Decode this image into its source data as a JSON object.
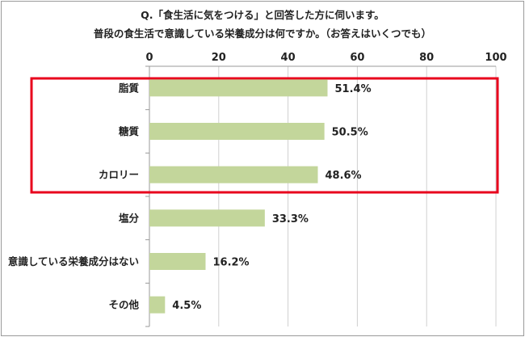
{
  "chart_data": {
    "type": "bar",
    "orientation": "horizontal",
    "title_lines": [
      "Q.「食生活に気をつける」と回答した方に伺います。",
      "普段の食生活で意識している栄養成分は何ですか。（お答えはいくつでも）"
    ],
    "categories": [
      "脂質",
      "糖質",
      "カロリー",
      "塩分",
      "意識している栄養成分はない",
      "その他"
    ],
    "values": [
      51.4,
      50.5,
      48.6,
      33.3,
      16.2,
      4.5
    ],
    "value_labels": [
      "51.4%",
      "50.5%",
      "48.6%",
      "33.3%",
      "16.2%",
      "4.5%"
    ],
    "xlim": [
      0,
      100
    ],
    "xticks": [
      0,
      20,
      40,
      60,
      80,
      100
    ],
    "xtick_labels": [
      "0",
      "20",
      "40",
      "60",
      "80",
      "100"
    ],
    "xaxis_position": "top",
    "grid": true,
    "legend": "none",
    "bar_color": "#c3d69b",
    "highlight": {
      "categories": [
        "脂質",
        "糖質",
        "カロリー"
      ],
      "color": "#e8001c"
    }
  }
}
